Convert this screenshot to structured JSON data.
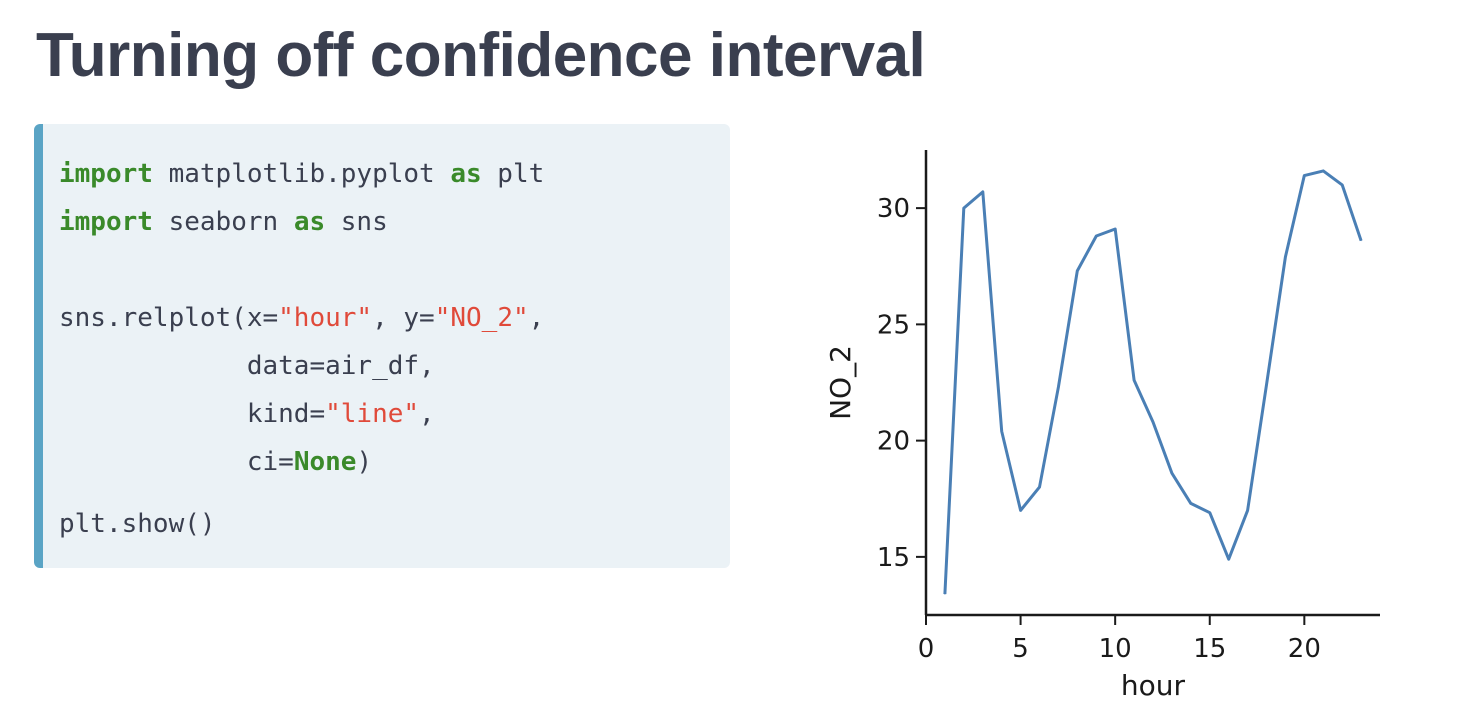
{
  "slide": {
    "title": "Turning off confidence interval"
  },
  "code": {
    "line1": {
      "kw1": "import",
      "t1": " matplotlib.pyplot ",
      "kw2": "as",
      "t2": " plt"
    },
    "line2": {
      "kw1": "import",
      "t1": " seaborn ",
      "kw2": "as",
      "t2": " sns"
    },
    "line3": {
      "t1": "sns.relplot(x=",
      "s1": "\"hour\"",
      "t2": ", y=",
      "s2": "\"NO_2\"",
      "t3": ","
    },
    "line4": {
      "t1": "            data=air_df,"
    },
    "line5": {
      "t1": "            kind=",
      "s1": "\"line\"",
      "t2": ","
    },
    "line6": {
      "t1": "            ci=",
      "kw1": "None",
      "t2": ")"
    },
    "line7": {
      "t1": "plt.show()"
    }
  },
  "colors": {
    "line": "#4a7fb5",
    "keyword": "#3a8a2a",
    "string": "#e04a3a",
    "code_bg": "#ebf2f6",
    "code_border": "#5aa4c5"
  },
  "chart_data": {
    "type": "line",
    "xlabel": "hour",
    "ylabel": "NO_2",
    "xlim": [
      0,
      24
    ],
    "ylim": [
      12.5,
      32.5
    ],
    "xticks": [
      0,
      5,
      10,
      15,
      20
    ],
    "yticks": [
      15,
      20,
      25,
      30
    ],
    "grid": false,
    "x": [
      1,
      2,
      3,
      4,
      5,
      6,
      7,
      8,
      9,
      10,
      11,
      12,
      13,
      14,
      15,
      16,
      17,
      18,
      19,
      20,
      21,
      22,
      23
    ],
    "series": [
      {
        "values": [
          13.4,
          30.0,
          30.7,
          20.4,
          17.0,
          18.0,
          22.3,
          27.3,
          28.8,
          29.1,
          22.6,
          20.8,
          18.6,
          17.3,
          16.9,
          14.9,
          17.0,
          22.4,
          27.9,
          31.4,
          31.6,
          31.0,
          28.6
        ]
      }
    ]
  }
}
